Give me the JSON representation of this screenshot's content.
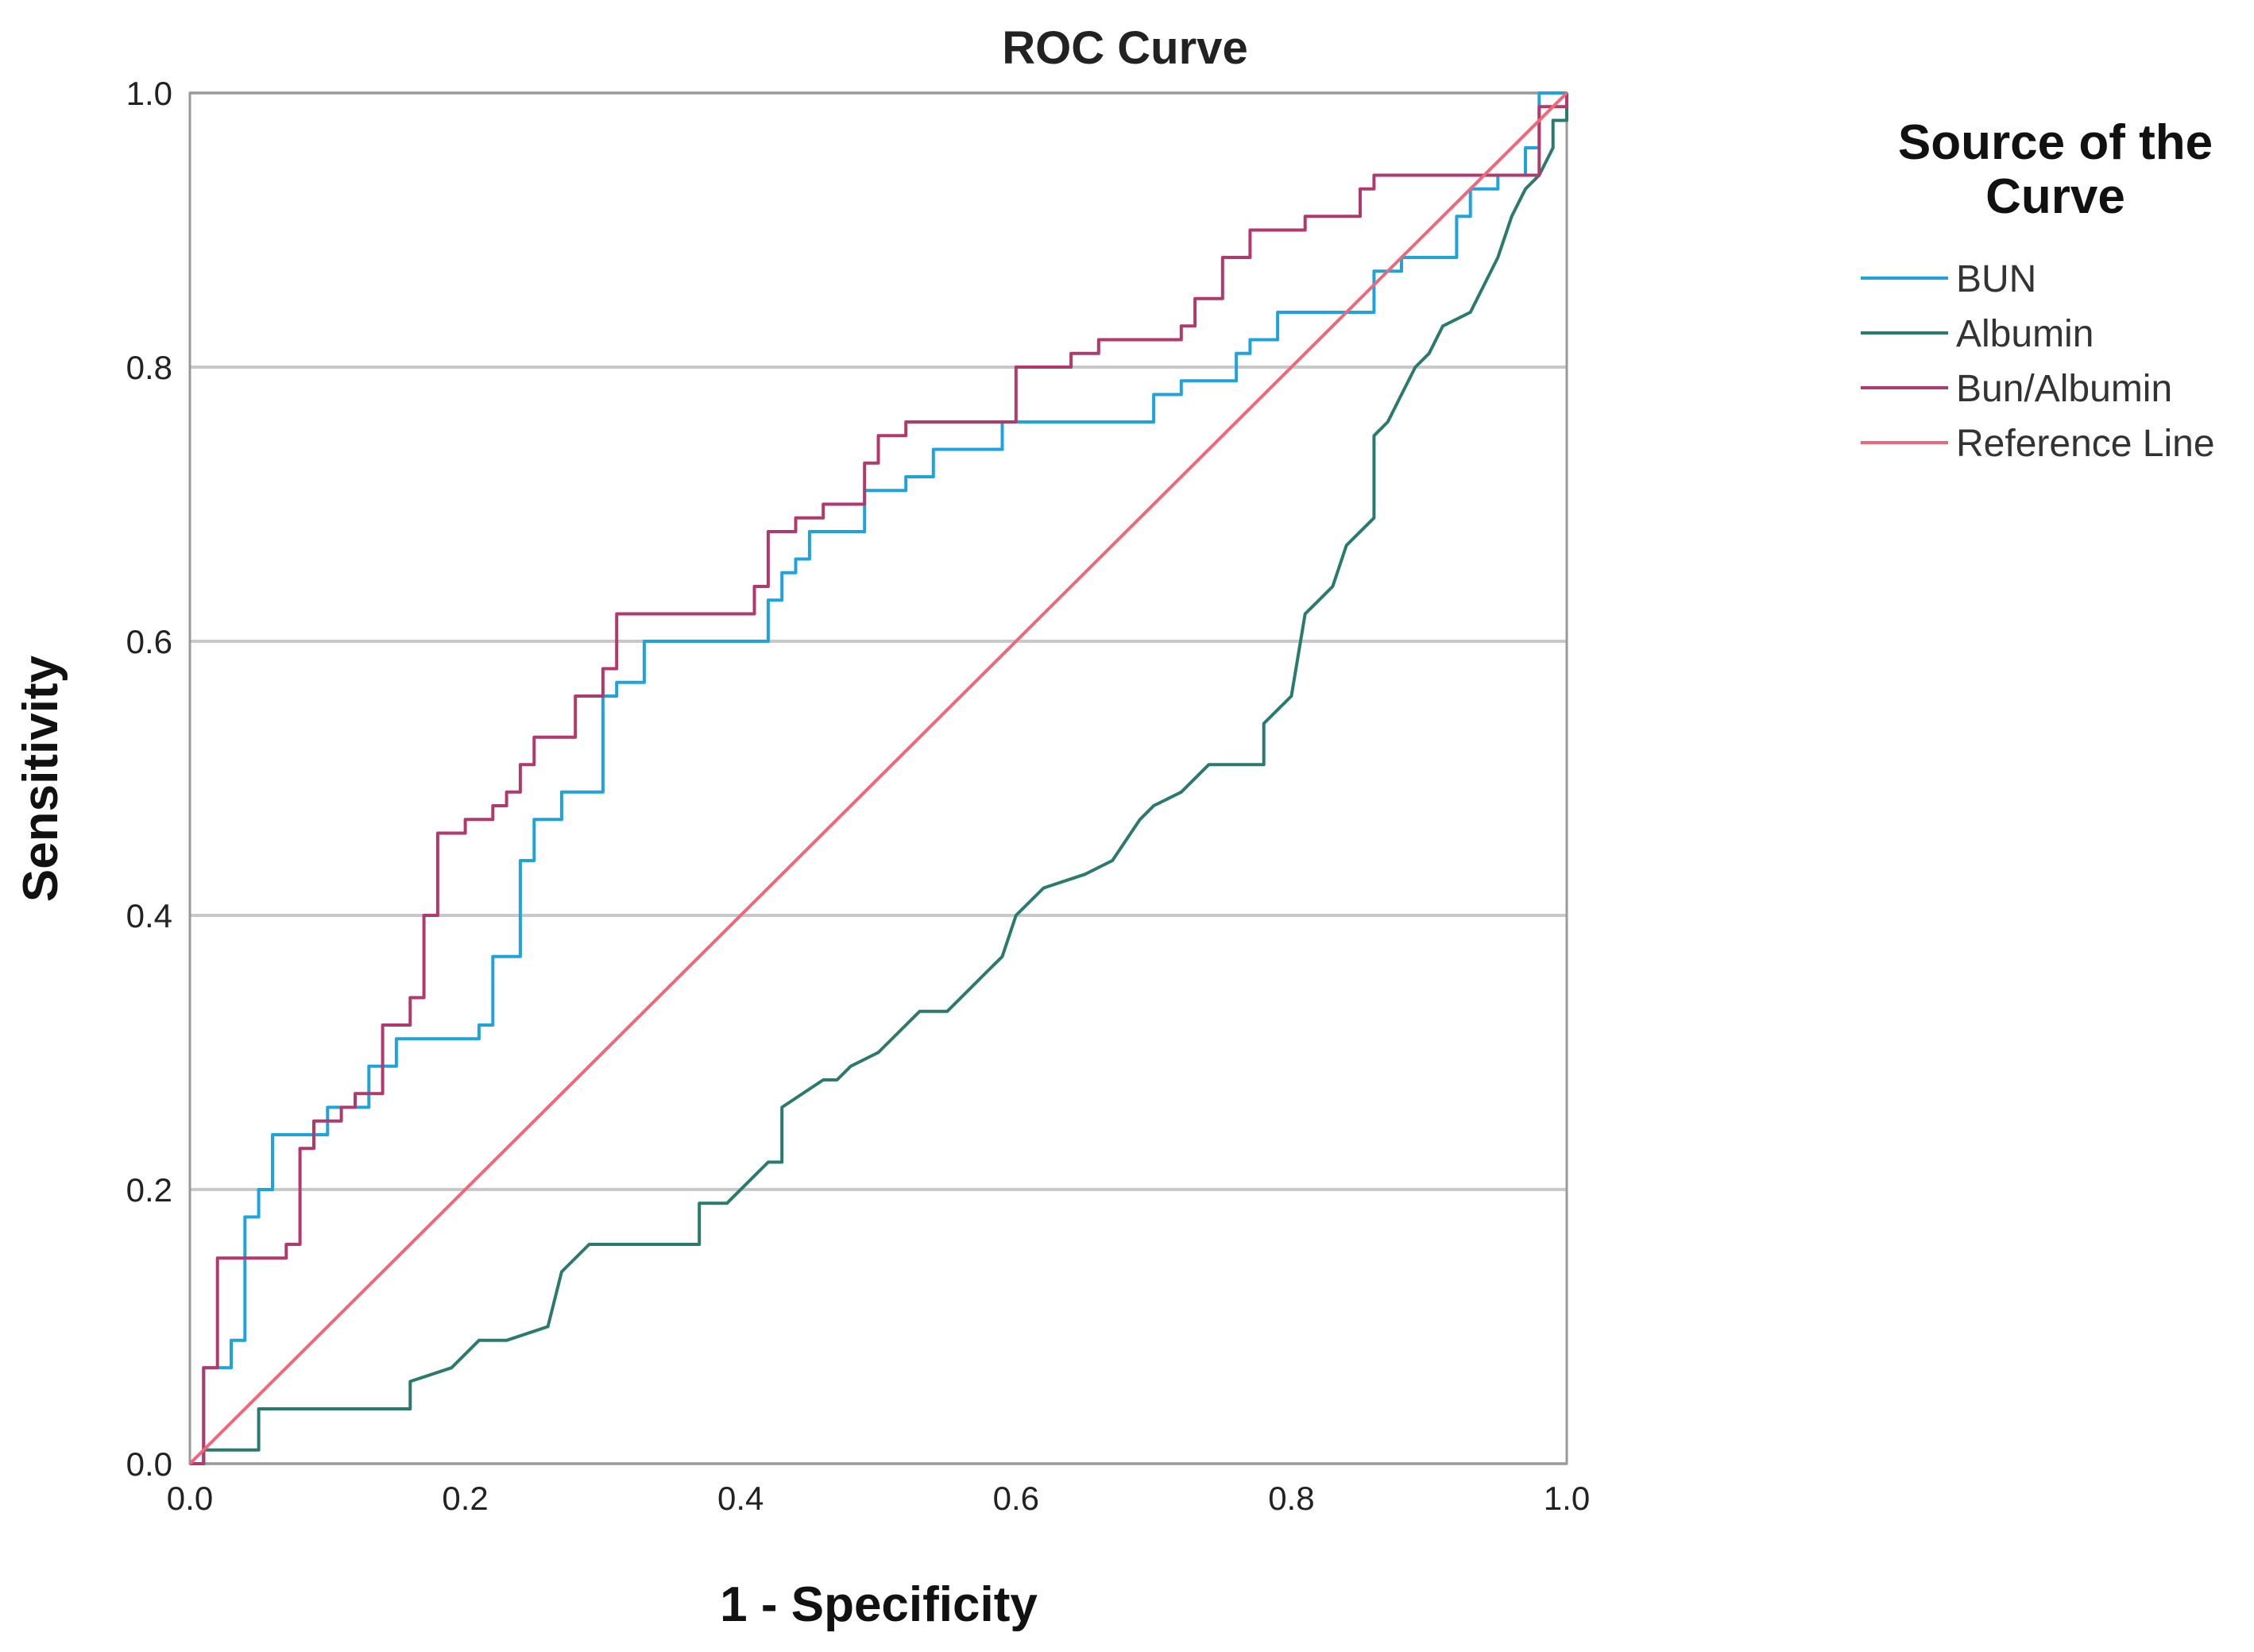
{
  "chart_data": {
    "type": "line",
    "title": "ROC Curve",
    "xlabel": "1 - Specificity",
    "ylabel": "Sensitivity",
    "xlim": [
      0,
      1
    ],
    "ylim": [
      0,
      1
    ],
    "x_ticks": [
      "0.0",
      "0.2",
      "0.4",
      "0.6",
      "0.8",
      "1.0"
    ],
    "y_ticks": [
      "0.0",
      "0.2",
      "0.4",
      "0.6",
      "0.8",
      "1.0"
    ],
    "grid": "horizontal",
    "legend": {
      "title_lines": [
        "Source of the",
        "Curve"
      ],
      "placement": "right"
    },
    "series": [
      {
        "name": "BUN",
        "color": "#1fa3dd",
        "points": [
          [
            0,
            0
          ],
          [
            0.01,
            0
          ],
          [
            0.01,
            0.07
          ],
          [
            0.03,
            0.07
          ],
          [
            0.03,
            0.09
          ],
          [
            0.04,
            0.09
          ],
          [
            0.04,
            0.18
          ],
          [
            0.05,
            0.18
          ],
          [
            0.05,
            0.2
          ],
          [
            0.06,
            0.2
          ],
          [
            0.06,
            0.24
          ],
          [
            0.1,
            0.24
          ],
          [
            0.1,
            0.26
          ],
          [
            0.13,
            0.26
          ],
          [
            0.13,
            0.29
          ],
          [
            0.15,
            0.29
          ],
          [
            0.15,
            0.31
          ],
          [
            0.21,
            0.31
          ],
          [
            0.21,
            0.32
          ],
          [
            0.22,
            0.32
          ],
          [
            0.22,
            0.37
          ],
          [
            0.24,
            0.37
          ],
          [
            0.24,
            0.44
          ],
          [
            0.25,
            0.44
          ],
          [
            0.25,
            0.47
          ],
          [
            0.27,
            0.47
          ],
          [
            0.27,
            0.49
          ],
          [
            0.3,
            0.49
          ],
          [
            0.3,
            0.56
          ],
          [
            0.31,
            0.56
          ],
          [
            0.31,
            0.57
          ],
          [
            0.33,
            0.57
          ],
          [
            0.33,
            0.6
          ],
          [
            0.42,
            0.6
          ],
          [
            0.42,
            0.63
          ],
          [
            0.43,
            0.63
          ],
          [
            0.43,
            0.65
          ],
          [
            0.44,
            0.65
          ],
          [
            0.44,
            0.66
          ],
          [
            0.45,
            0.66
          ],
          [
            0.45,
            0.68
          ],
          [
            0.49,
            0.68
          ],
          [
            0.49,
            0.71
          ],
          [
            0.52,
            0.71
          ],
          [
            0.52,
            0.72
          ],
          [
            0.54,
            0.72
          ],
          [
            0.54,
            0.74
          ],
          [
            0.59,
            0.74
          ],
          [
            0.59,
            0.76
          ],
          [
            0.7,
            0.76
          ],
          [
            0.7,
            0.78
          ],
          [
            0.72,
            0.78
          ],
          [
            0.72,
            0.79
          ],
          [
            0.76,
            0.79
          ],
          [
            0.76,
            0.81
          ],
          [
            0.77,
            0.81
          ],
          [
            0.77,
            0.82
          ],
          [
            0.79,
            0.82
          ],
          [
            0.79,
            0.84
          ],
          [
            0.86,
            0.84
          ],
          [
            0.86,
            0.87
          ],
          [
            0.88,
            0.87
          ],
          [
            0.88,
            0.88
          ],
          [
            0.92,
            0.88
          ],
          [
            0.92,
            0.91
          ],
          [
            0.93,
            0.91
          ],
          [
            0.93,
            0.93
          ],
          [
            0.95,
            0.93
          ],
          [
            0.95,
            0.94
          ],
          [
            0.97,
            0.94
          ],
          [
            0.97,
            0.96
          ],
          [
            0.98,
            0.96
          ],
          [
            0.98,
            1.0
          ],
          [
            1.0,
            1.0
          ]
        ]
      },
      {
        "name": "Albumin",
        "color": "#2a7a6e",
        "points": [
          [
            0,
            0
          ],
          [
            0.01,
            0
          ],
          [
            0.01,
            0.01
          ],
          [
            0.05,
            0.01
          ],
          [
            0.05,
            0.04
          ],
          [
            0.16,
            0.04
          ],
          [
            0.16,
            0.06
          ],
          [
            0.19,
            0.07
          ],
          [
            0.21,
            0.09
          ],
          [
            0.23,
            0.09
          ],
          [
            0.26,
            0.1
          ],
          [
            0.27,
            0.14
          ],
          [
            0.29,
            0.16
          ],
          [
            0.37,
            0.16
          ],
          [
            0.37,
            0.19
          ],
          [
            0.39,
            0.19
          ],
          [
            0.41,
            0.21
          ],
          [
            0.42,
            0.22
          ],
          [
            0.43,
            0.22
          ],
          [
            0.43,
            0.26
          ],
          [
            0.46,
            0.28
          ],
          [
            0.47,
            0.28
          ],
          [
            0.48,
            0.29
          ],
          [
            0.5,
            0.3
          ],
          [
            0.52,
            0.32
          ],
          [
            0.53,
            0.33
          ],
          [
            0.55,
            0.33
          ],
          [
            0.57,
            0.35
          ],
          [
            0.58,
            0.36
          ],
          [
            0.59,
            0.37
          ],
          [
            0.6,
            0.4
          ],
          [
            0.62,
            0.42
          ],
          [
            0.65,
            0.43
          ],
          [
            0.67,
            0.44
          ],
          [
            0.69,
            0.47
          ],
          [
            0.7,
            0.48
          ],
          [
            0.72,
            0.49
          ],
          [
            0.74,
            0.51
          ],
          [
            0.78,
            0.51
          ],
          [
            0.78,
            0.54
          ],
          [
            0.8,
            0.56
          ],
          [
            0.81,
            0.62
          ],
          [
            0.82,
            0.63
          ],
          [
            0.83,
            0.64
          ],
          [
            0.84,
            0.67
          ],
          [
            0.86,
            0.69
          ],
          [
            0.86,
            0.75
          ],
          [
            0.87,
            0.76
          ],
          [
            0.88,
            0.78
          ],
          [
            0.89,
            0.8
          ],
          [
            0.9,
            0.81
          ],
          [
            0.91,
            0.83
          ],
          [
            0.93,
            0.84
          ],
          [
            0.94,
            0.86
          ],
          [
            0.95,
            0.88
          ],
          [
            0.96,
            0.91
          ],
          [
            0.97,
            0.93
          ],
          [
            0.98,
            0.94
          ],
          [
            0.99,
            0.96
          ],
          [
            0.99,
            0.98
          ],
          [
            1.0,
            0.98
          ],
          [
            1.0,
            1.0
          ]
        ]
      },
      {
        "name": "Bun/Albumin",
        "color": "#b03a6e",
        "points": [
          [
            0,
            0
          ],
          [
            0.01,
            0
          ],
          [
            0.01,
            0.07
          ],
          [
            0.02,
            0.07
          ],
          [
            0.02,
            0.15
          ],
          [
            0.07,
            0.15
          ],
          [
            0.07,
            0.16
          ],
          [
            0.08,
            0.16
          ],
          [
            0.08,
            0.23
          ],
          [
            0.09,
            0.23
          ],
          [
            0.09,
            0.25
          ],
          [
            0.11,
            0.25
          ],
          [
            0.11,
            0.26
          ],
          [
            0.12,
            0.26
          ],
          [
            0.12,
            0.27
          ],
          [
            0.14,
            0.27
          ],
          [
            0.14,
            0.32
          ],
          [
            0.16,
            0.32
          ],
          [
            0.16,
            0.34
          ],
          [
            0.17,
            0.34
          ],
          [
            0.17,
            0.4
          ],
          [
            0.18,
            0.4
          ],
          [
            0.18,
            0.46
          ],
          [
            0.2,
            0.46
          ],
          [
            0.2,
            0.47
          ],
          [
            0.22,
            0.47
          ],
          [
            0.22,
            0.48
          ],
          [
            0.23,
            0.48
          ],
          [
            0.23,
            0.49
          ],
          [
            0.24,
            0.49
          ],
          [
            0.24,
            0.51
          ],
          [
            0.25,
            0.51
          ],
          [
            0.25,
            0.53
          ],
          [
            0.28,
            0.53
          ],
          [
            0.28,
            0.56
          ],
          [
            0.3,
            0.56
          ],
          [
            0.3,
            0.58
          ],
          [
            0.31,
            0.58
          ],
          [
            0.31,
            0.62
          ],
          [
            0.41,
            0.62
          ],
          [
            0.41,
            0.64
          ],
          [
            0.42,
            0.64
          ],
          [
            0.42,
            0.68
          ],
          [
            0.44,
            0.68
          ],
          [
            0.44,
            0.69
          ],
          [
            0.46,
            0.69
          ],
          [
            0.46,
            0.7
          ],
          [
            0.49,
            0.7
          ],
          [
            0.49,
            0.73
          ],
          [
            0.5,
            0.73
          ],
          [
            0.5,
            0.75
          ],
          [
            0.52,
            0.75
          ],
          [
            0.52,
            0.76
          ],
          [
            0.6,
            0.76
          ],
          [
            0.6,
            0.8
          ],
          [
            0.64,
            0.8
          ],
          [
            0.64,
            0.81
          ],
          [
            0.66,
            0.81
          ],
          [
            0.66,
            0.82
          ],
          [
            0.72,
            0.82
          ],
          [
            0.72,
            0.83
          ],
          [
            0.73,
            0.83
          ],
          [
            0.73,
            0.85
          ],
          [
            0.75,
            0.85
          ],
          [
            0.75,
            0.88
          ],
          [
            0.77,
            0.88
          ],
          [
            0.77,
            0.9
          ],
          [
            0.81,
            0.9
          ],
          [
            0.81,
            0.91
          ],
          [
            0.85,
            0.91
          ],
          [
            0.85,
            0.93
          ],
          [
            0.86,
            0.93
          ],
          [
            0.86,
            0.94
          ],
          [
            0.98,
            0.94
          ],
          [
            0.98,
            0.99
          ],
          [
            1.0,
            0.99
          ],
          [
            1.0,
            1.0
          ]
        ]
      },
      {
        "name": "Reference Line",
        "color": "#f0677a",
        "points": [
          [
            0,
            0
          ],
          [
            1,
            1
          ]
        ]
      }
    ]
  }
}
